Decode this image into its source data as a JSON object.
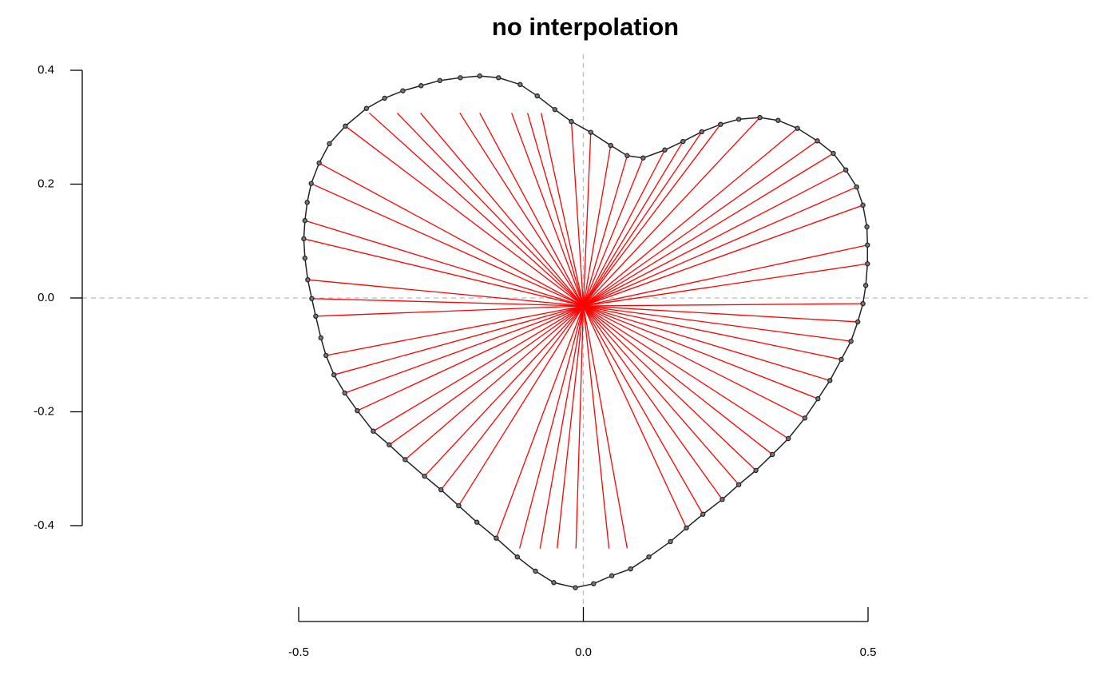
{
  "chart_data": {
    "type": "radial",
    "title": "no interpolation",
    "xlim": [
      -0.5,
      0.5
    ],
    "xticks": [
      {
        "value": -0.5,
        "label": "-0.5"
      },
      {
        "value": 0,
        "label": "0.0"
      },
      {
        "value": 0.5,
        "label": "0.5"
      }
    ],
    "ylim": [
      -0.4,
      0.4
    ],
    "yticks": [
      {
        "value": -0.4,
        "label": "-0.4"
      },
      {
        "value": -0.2,
        "label": "-0.2"
      },
      {
        "value": 0,
        "label": "0.0"
      },
      {
        "value": 0.2,
        "label": "0.2"
      },
      {
        "value": 0.4,
        "label": "0.4"
      }
    ],
    "outline": {
      "color": "#222222",
      "x": [
        -0.021,
        -0.05,
        -0.081,
        -0.111,
        -0.149,
        -0.182,
        -0.216,
        -0.252,
        -0.285,
        -0.317,
        -0.349,
        -0.381,
        -0.418,
        -0.446,
        -0.464,
        -0.478,
        -0.485,
        -0.489,
        -0.491,
        -0.489,
        -0.484,
        -0.477,
        -0.47,
        -0.461,
        -0.452,
        -0.438,
        -0.419,
        -0.397,
        -0.369,
        -0.341,
        -0.313,
        -0.279,
        -0.25,
        -0.219,
        -0.187,
        -0.153,
        -0.116,
        -0.084,
        -0.052,
        -0.014,
        0.018,
        0.05,
        0.083,
        0.115,
        0.153,
        0.181,
        0.21,
        0.244,
        0.273,
        0.303,
        0.332,
        0.36,
        0.389,
        0.412,
        0.433,
        0.453,
        0.47,
        0.482,
        0.491,
        0.496,
        0.499,
        0.499,
        0.498,
        0.491,
        0.48,
        0.461,
        0.439,
        0.411,
        0.376,
        0.342,
        0.31,
        0.273,
        0.241,
        0.208,
        0.175,
        0.143,
        0.105,
        0.077,
        0.048,
        0.013
      ],
      "y": [
        0.31,
        0.331,
        0.355,
        0.375,
        0.387,
        0.39,
        0.387,
        0.382,
        0.373,
        0.364,
        0.351,
        0.333,
        0.302,
        0.271,
        0.237,
        0.201,
        0.168,
        0.136,
        0.104,
        0.07,
        0.032,
        -0.001,
        -0.032,
        -0.07,
        -0.101,
        -0.135,
        -0.167,
        -0.198,
        -0.234,
        -0.258,
        -0.284,
        -0.313,
        -0.337,
        -0.365,
        -0.394,
        -0.422,
        -0.455,
        -0.48,
        -0.5,
        -0.509,
        -0.502,
        -0.488,
        -0.476,
        -0.455,
        -0.428,
        -0.404,
        -0.38,
        -0.354,
        -0.328,
        -0.303,
        -0.275,
        -0.247,
        -0.211,
        -0.177,
        -0.145,
        -0.108,
        -0.076,
        -0.042,
        -0.01,
        0.022,
        0.06,
        0.093,
        0.125,
        0.163,
        0.195,
        0.225,
        0.254,
        0.276,
        0.298,
        0.312,
        0.317,
        0.314,
        0.305,
        0.292,
        0.275,
        0.26,
        0.246,
        0.25,
        0.268,
        0.291
      ]
    },
    "rays": {
      "color": "#ff0000",
      "center_x": 0,
      "center_y": -0.014,
      "x": [
        -0.021,
        -0.074,
        -0.098,
        -0.126,
        -0.182,
        -0.217,
        -0.286,
        -0.327,
        -0.376,
        -0.418,
        -0.464,
        -0.478,
        -0.489,
        -0.491,
        -0.484,
        -0.477,
        -0.47,
        -0.452,
        -0.438,
        -0.419,
        -0.397,
        -0.369,
        -0.341,
        -0.313,
        -0.279,
        -0.25,
        -0.219,
        -0.153,
        -0.112,
        -0.076,
        -0.046,
        -0.013,
        0.045,
        0.077,
        0.181,
        0.21,
        0.244,
        0.273,
        0.303,
        0.332,
        0.36,
        0.389,
        0.412,
        0.433,
        0.453,
        0.47,
        0.482,
        0.491,
        0.499,
        0.499,
        0.491,
        0.48,
        0.461,
        0.439,
        0.411,
        0.376,
        0.31,
        0.241,
        0.208,
        0.175,
        0.143,
        0.105,
        0.077,
        0.048,
        0.013
      ],
      "y": [
        0.31,
        0.325,
        0.325,
        0.325,
        0.325,
        0.325,
        0.325,
        0.325,
        0.325,
        0.302,
        0.237,
        0.201,
        0.136,
        0.104,
        0.032,
        -0.001,
        -0.032,
        -0.101,
        -0.135,
        -0.167,
        -0.198,
        -0.234,
        -0.258,
        -0.284,
        -0.313,
        -0.337,
        -0.365,
        -0.422,
        -0.44,
        -0.44,
        -0.44,
        -0.44,
        -0.44,
        -0.44,
        -0.404,
        -0.38,
        -0.354,
        -0.328,
        -0.303,
        -0.275,
        -0.247,
        -0.211,
        -0.177,
        -0.145,
        -0.108,
        -0.076,
        -0.042,
        -0.01,
        0.06,
        0.093,
        0.163,
        0.195,
        0.225,
        0.254,
        0.276,
        0.298,
        0.317,
        0.305,
        0.292,
        0.275,
        0.26,
        0.246,
        0.25,
        0.268,
        0.291
      ]
    }
  }
}
